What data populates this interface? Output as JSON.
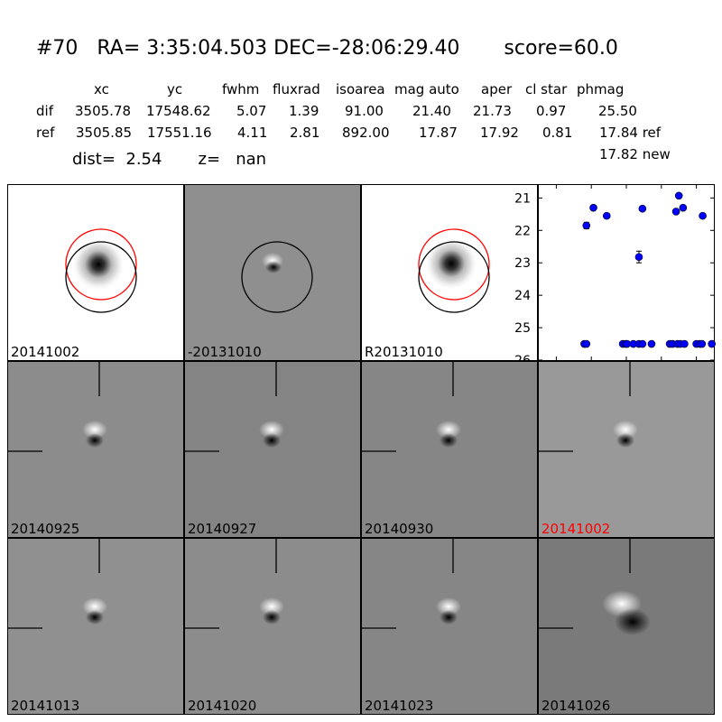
{
  "header": {
    "title": "#70   RA= 3:35:04.503 DEC=-28:06:29.40       score=60.0",
    "columns": [
      "xc",
      "yc",
      "fwhm",
      "fluxrad",
      "isoarea",
      "mag auto",
      "aper",
      "cl star",
      "phmag"
    ],
    "dif": {
      "label": "dif",
      "values": [
        "3505.78",
        "17548.62",
        "5.07",
        "1.39",
        "91.00",
        "21.40",
        "21.73",
        "0.97",
        "25.50"
      ]
    },
    "ref": {
      "label": "ref",
      "values": [
        "3505.85",
        "17551.16",
        "4.11",
        "2.81",
        "892.00",
        "17.87",
        "17.92",
        "0.81",
        "17.84 ref"
      ]
    },
    "extra": "17.82 new",
    "dist_line": "dist=  2.54       z=   nan"
  },
  "top_panels": [
    {
      "label": "20141002",
      "bg": "#ffffff",
      "kind": "ref"
    },
    {
      "label": "-20131010",
      "bg": "#8f8f8f",
      "kind": "diff"
    },
    {
      "label": "R20131010",
      "bg": "#ffffff",
      "kind": "ref"
    }
  ],
  "stamps": [
    {
      "label": "20140925",
      "bg": "#8c8c8c",
      "highlight": false
    },
    {
      "label": "20140927",
      "bg": "#848484",
      "highlight": false
    },
    {
      "label": "20140930",
      "bg": "#868686",
      "highlight": false
    },
    {
      "label": "20141002",
      "bg": "#999999",
      "highlight": true
    },
    {
      "label": "20141013",
      "bg": "#909090",
      "highlight": false
    },
    {
      "label": "20141020",
      "bg": "#8c8c8c",
      "highlight": false
    },
    {
      "label": "20141023",
      "bg": "#868686",
      "highlight": false
    },
    {
      "label": "20141026",
      "bg": "#7a7a7a",
      "highlight": false
    }
  ],
  "colors": {
    "highlight_label": "#ff0000",
    "circle_red": "#ff0000",
    "point": "#0000ff"
  },
  "chart_data": {
    "type": "scatter",
    "xlim": [
      -125,
      125
    ],
    "ylim": [
      26,
      20.6
    ],
    "y_inverted": true,
    "xticks": [
      -100,
      -50,
      0,
      50,
      100
    ],
    "yticks": [
      21,
      22,
      23,
      24,
      25,
      26
    ],
    "detections": [
      {
        "x": -57,
        "y": 21.85,
        "err": 0.1
      },
      {
        "x": -47,
        "y": 21.3,
        "err": 0.05
      },
      {
        "x": -28,
        "y": 21.55,
        "err": 0.05
      },
      {
        "x": 18,
        "y": 22.82,
        "err": 0.18
      },
      {
        "x": 23,
        "y": 21.33,
        "err": 0.05
      },
      {
        "x": 71,
        "y": 21.42,
        "err": 0.05
      },
      {
        "x": 75,
        "y": 20.93,
        "err": 0.05
      },
      {
        "x": 81,
        "y": 21.3,
        "err": 0.05
      },
      {
        "x": 109,
        "y": 21.55,
        "err": 0.05
      }
    ],
    "upper_limits": [
      {
        "x": -60,
        "y": 25.5
      },
      {
        "x": -57,
        "y": 25.5
      },
      {
        "x": -5,
        "y": 25.5
      },
      {
        "x": -1,
        "y": 25.5
      },
      {
        "x": 1,
        "y": 25.5
      },
      {
        "x": 10,
        "y": 25.5
      },
      {
        "x": 18,
        "y": 25.5
      },
      {
        "x": 23,
        "y": 25.5
      },
      {
        "x": 36,
        "y": 25.5
      },
      {
        "x": 62,
        "y": 25.5
      },
      {
        "x": 66,
        "y": 25.5
      },
      {
        "x": 73,
        "y": 25.5
      },
      {
        "x": 77,
        "y": 25.5
      },
      {
        "x": 83,
        "y": 25.5
      },
      {
        "x": 100,
        "y": 25.5
      },
      {
        "x": 105,
        "y": 25.5
      },
      {
        "x": 108,
        "y": 25.5
      },
      {
        "x": 122,
        "y": 25.5
      }
    ]
  }
}
